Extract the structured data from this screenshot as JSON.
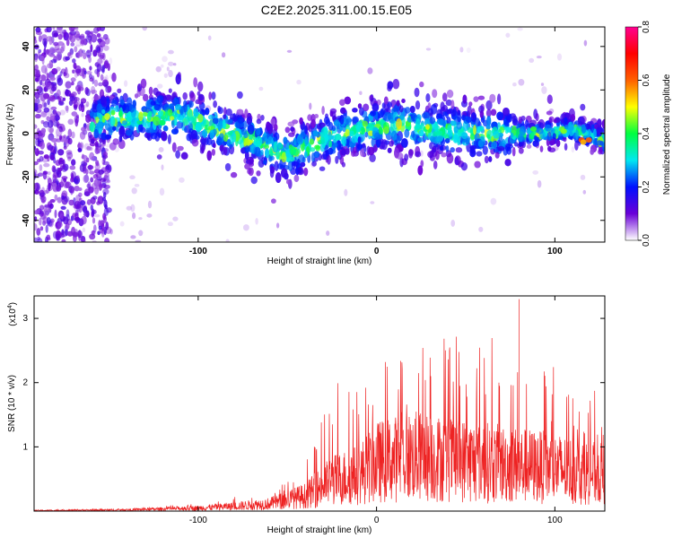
{
  "title": "C2E2.2025.311.00.15.E05",
  "chart_data": [
    {
      "type": "heatmap",
      "name": "spectrogram",
      "xlabel": "Height of straight line (km)",
      "ylabel": "Frequency (Hz)",
      "xlim": [
        -192,
        128
      ],
      "ylim": [
        -50,
        49
      ],
      "xticks": [
        -100,
        0,
        100
      ],
      "yticks": [
        40,
        20,
        0,
        -20,
        -40
      ],
      "band_center_hz": [
        {
          "x": -192,
          "y": 0
        },
        {
          "x": -150,
          "y": 7
        },
        {
          "x": -110,
          "y": 8
        },
        {
          "x": -90,
          "y": 2
        },
        {
          "x": -70,
          "y": -3
        },
        {
          "x": -50,
          "y": -10
        },
        {
          "x": -30,
          "y": -3
        },
        {
          "x": -10,
          "y": 2
        },
        {
          "x": 10,
          "y": 4
        },
        {
          "x": 30,
          "y": 2
        },
        {
          "x": 50,
          "y": 0
        },
        {
          "x": 70,
          "y": 0
        },
        {
          "x": 90,
          "y": 0
        },
        {
          "x": 110,
          "y": 2
        },
        {
          "x": 128,
          "y": -3
        }
      ],
      "colorbar": {
        "label": "Normalized spectral amplitude",
        "range": [
          0,
          0.8
        ],
        "ticks": [
          "0.0",
          "0.2",
          "0.4",
          "0.6",
          "0.8"
        ],
        "stops": [
          "#ffffff",
          "#6a00d8",
          "#0010ff",
          "#00e8f0",
          "#00ff40",
          "#ffff00",
          "#ff6000",
          "#ff0000",
          "#ff0090"
        ]
      }
    },
    {
      "type": "line",
      "name": "snr",
      "xlabel": "Height of straight line (km)",
      "ylabel": "SNR (10 * v/v)",
      "scale_label_base": "(x10",
      "scale_label_exp": "4",
      "scale_label_end": ")",
      "xlim": [
        -192,
        128
      ],
      "ylim": [
        0,
        3.35
      ],
      "xticks": [
        -100,
        0,
        100
      ],
      "yticks": [
        1,
        2,
        3
      ],
      "color": "#ee2222",
      "envelope": [
        {
          "x": -192,
          "mean": 0.01,
          "peak": 0.02
        },
        {
          "x": -140,
          "mean": 0.02,
          "peak": 0.04
        },
        {
          "x": -100,
          "mean": 0.05,
          "peak": 0.12
        },
        {
          "x": -80,
          "mean": 0.08,
          "peak": 0.22
        },
        {
          "x": -60,
          "mean": 0.12,
          "peak": 0.4
        },
        {
          "x": -40,
          "mean": 0.25,
          "peak": 0.7
        },
        {
          "x": -25,
          "mean": 0.5,
          "peak": 2.0
        },
        {
          "x": -10,
          "mean": 0.6,
          "peak": 2.2
        },
        {
          "x": 0,
          "mean": 0.8,
          "peak": 2.3
        },
        {
          "x": 20,
          "mean": 0.9,
          "peak": 2.6
        },
        {
          "x": 40,
          "mean": 0.85,
          "peak": 2.8
        },
        {
          "x": 60,
          "mean": 0.8,
          "peak": 2.7
        },
        {
          "x": 80,
          "mean": 0.75,
          "peak": 3.3
        },
        {
          "x": 100,
          "mean": 0.7,
          "peak": 2.2
        },
        {
          "x": 128,
          "mean": 0.6,
          "peak": 1.8
        }
      ]
    }
  ]
}
